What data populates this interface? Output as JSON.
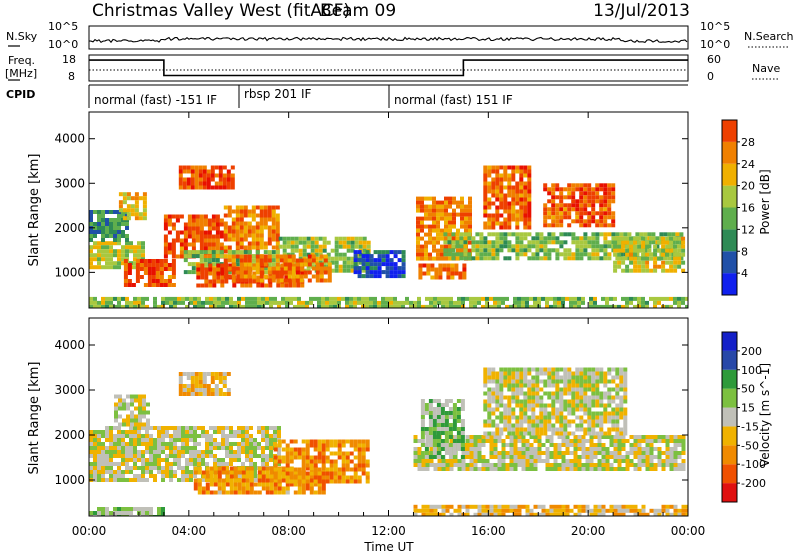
{
  "header": {
    "title": "Christmas Valley West (fitACF)",
    "beam": "Beam 09",
    "date": "13/Jul/2013"
  },
  "status_panels": {
    "nsky": {
      "label": "N.Sky",
      "y_ticks": [
        "10^5",
        "10^0"
      ],
      "right_label": "N.Search",
      "right_ticks": [
        "10^5",
        "10^0"
      ]
    },
    "freq": {
      "label_line1": "Freq.",
      "label_line2": "[MHz]",
      "y_ticks": [
        "18",
        "8"
      ],
      "right_label": "Nave",
      "right_ticks": [
        "60",
        "0"
      ],
      "steps": [
        {
          "from_hour": 0,
          "to_hour": 3,
          "freq_mhz": 17.5
        },
        {
          "from_hour": 3,
          "to_hour": 15,
          "freq_mhz": 10.5
        },
        {
          "from_hour": 15,
          "to_hour": 24,
          "freq_mhz": 17.5
        }
      ]
    },
    "cpid": {
      "label": "CPID",
      "modes": [
        {
          "text": "normal (fast) -151 IF",
          "from_hour": 0
        },
        {
          "text": "rbsp 201 IF",
          "from_hour": 6
        },
        {
          "text": "normal (fast) 151 IF",
          "from_hour": 12
        }
      ]
    }
  },
  "x_axis": {
    "label": "Time UT",
    "ticks": [
      "00:00",
      "04:00",
      "08:00",
      "12:00",
      "16:00",
      "20:00",
      "00:00"
    ],
    "range_hours": [
      0,
      24
    ]
  },
  "colors": {
    "power": [
      "#1020ee",
      "#2050a8",
      "#2e8a55",
      "#5fae4d",
      "#a8c840",
      "#f0b000",
      "#f08000",
      "#ee4000",
      "#e81000"
    ],
    "velocity": [
      "#e01010",
      "#f05000",
      "#f08a00",
      "#f0b200",
      "#c0c0b8",
      "#7cc040",
      "#2e9a3a",
      "#2848a8",
      "#1420c8"
    ],
    "ground": "#b8b8b0"
  },
  "chart_data": [
    {
      "type": "heatmap",
      "name": "power",
      "ylabel": "Slant Range [km]",
      "yticks": [
        1000,
        2000,
        3000,
        4000
      ],
      "ylim": [
        200,
        4600
      ],
      "colorbar_label": "Power [dB]",
      "colorbar_ticks": [
        4,
        8,
        12,
        16,
        20,
        24,
        28
      ],
      "colorbar_range": [
        0,
        32
      ],
      "regions": [
        {
          "t0": 0.0,
          "t1": 2.2,
          "r0": 1100,
          "r1": 1700,
          "v": 17
        },
        {
          "t0": 1.4,
          "t1": 3.4,
          "r0": 700,
          "r1": 1300,
          "v": 27
        },
        {
          "t0": 3.0,
          "t1": 5.4,
          "r0": 1400,
          "r1": 2300,
          "v": 27
        },
        {
          "t0": 5.4,
          "t1": 7.6,
          "r0": 1500,
          "r1": 2500,
          "v": 24
        },
        {
          "t0": 3.8,
          "t1": 7.6,
          "r0": 1000,
          "r1": 1500,
          "v": 14
        },
        {
          "t0": 7.6,
          "t1": 11.2,
          "r0": 1000,
          "r1": 1800,
          "v": 15
        },
        {
          "t0": 4.3,
          "t1": 8.6,
          "r0": 700,
          "r1": 1200,
          "v": 27
        },
        {
          "t0": 5.4,
          "t1": 9.6,
          "r0": 850,
          "r1": 1400,
          "v": 25
        },
        {
          "t0": 3.6,
          "t1": 5.7,
          "r0": 2900,
          "r1": 3400,
          "v": 28
        },
        {
          "t0": 13.1,
          "t1": 15.2,
          "r0": 1300,
          "r1": 2700,
          "v": 24
        },
        {
          "t0": 13.2,
          "t1": 15.0,
          "r0": 850,
          "r1": 1200,
          "v": 26
        },
        {
          "t0": 14.2,
          "t1": 23.8,
          "r0": 1300,
          "r1": 1900,
          "v": 14
        },
        {
          "t0": 15.8,
          "t1": 17.6,
          "r0": 2000,
          "r1": 3400,
          "v": 26
        },
        {
          "t0": 18.2,
          "t1": 21.0,
          "r0": 2100,
          "r1": 3000,
          "v": 27
        },
        {
          "t0": 21.0,
          "t1": 23.8,
          "r0": 1000,
          "r1": 1800,
          "v": 17
        },
        {
          "t0": 0.0,
          "t1": 1.6,
          "r0": 1700,
          "r1": 2400,
          "v": 9
        },
        {
          "t0": 1.2,
          "t1": 2.2,
          "r0": 2200,
          "r1": 2800,
          "v": 20
        },
        {
          "t0": 0.0,
          "t1": 24.0,
          "r0": 200,
          "r1": 450,
          "v": 14
        },
        {
          "t0": 10.6,
          "t1": 12.6,
          "r0": 900,
          "r1": 1500,
          "v": 3
        }
      ]
    },
    {
      "type": "heatmap",
      "name": "velocity",
      "ylabel": "Slant Range [km]",
      "yticks": [
        1000,
        2000,
        3000,
        4000
      ],
      "ylim": [
        200,
        4600
      ],
      "colorbar_label": "Velocity [m s^-1]",
      "colorbar_ticks": [
        -200,
        -100,
        -50,
        -15,
        15,
        50,
        100,
        200
      ],
      "regions": [
        {
          "t0": 0.0,
          "t1": 7.6,
          "r0": 1000,
          "r1": 2200,
          "v": 0
        },
        {
          "t0": 1.0,
          "t1": 2.4,
          "r0": 2200,
          "r1": 2900,
          "v": 0
        },
        {
          "t0": 3.6,
          "t1": 5.6,
          "r0": 2900,
          "r1": 3400,
          "v": -30
        },
        {
          "t0": 4.2,
          "t1": 9.4,
          "r0": 700,
          "r1": 1300,
          "v": -80
        },
        {
          "t0": 7.4,
          "t1": 11.2,
          "r0": 950,
          "r1": 1900,
          "v": -55
        },
        {
          "t0": 13.0,
          "t1": 23.8,
          "r0": 1200,
          "r1": 2000,
          "v": 0
        },
        {
          "t0": 15.8,
          "t1": 21.5,
          "r0": 2000,
          "r1": 3500,
          "v": 0
        },
        {
          "t0": 13.3,
          "t1": 15.0,
          "r0": 1500,
          "r1": 2800,
          "v": 35
        },
        {
          "t0": 13.0,
          "t1": 24.0,
          "r0": 200,
          "r1": 450,
          "v": -40
        },
        {
          "t0": 0.0,
          "t1": 3.0,
          "r0": 200,
          "r1": 400,
          "v": 40
        }
      ]
    }
  ]
}
